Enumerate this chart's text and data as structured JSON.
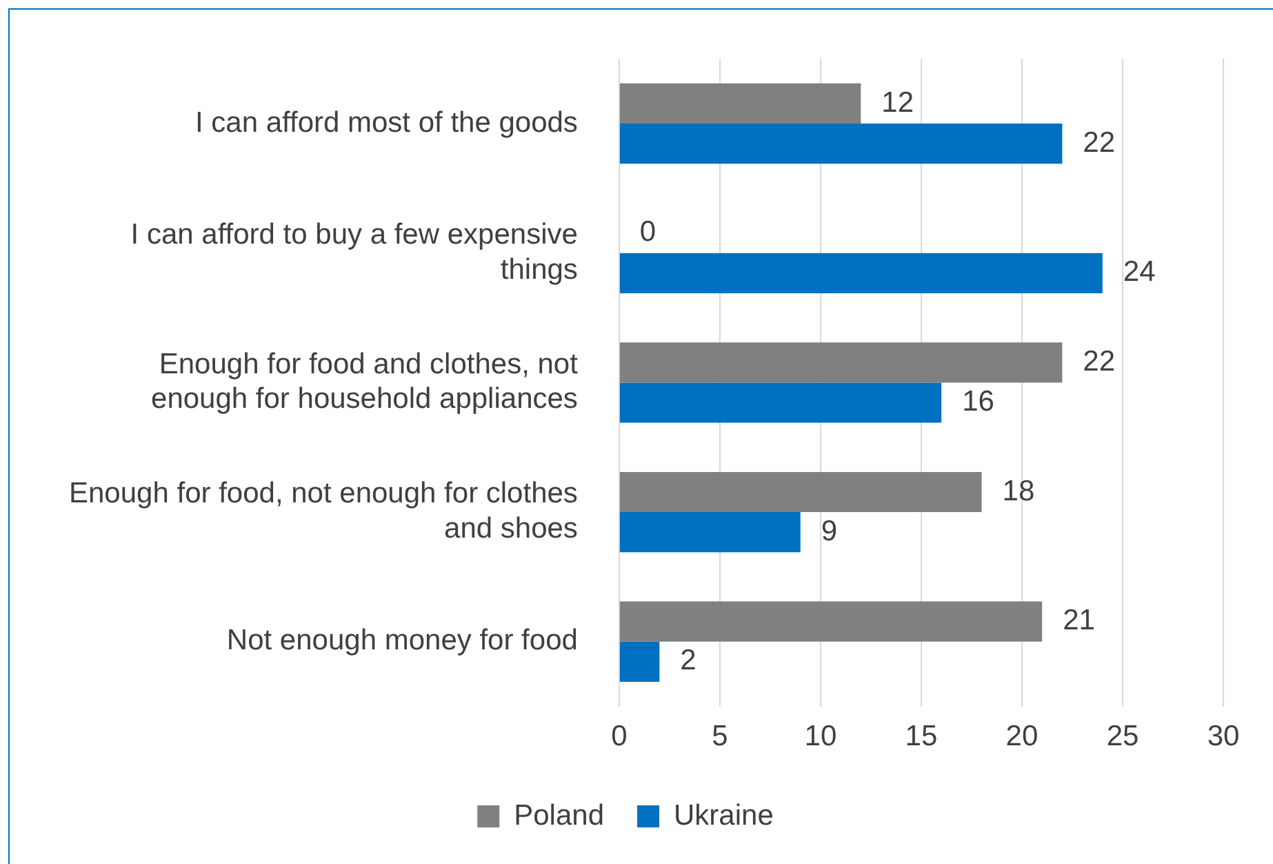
{
  "chart_data": {
    "type": "bar",
    "orientation": "horizontal",
    "categories": [
      "I can afford most of the goods",
      "I can afford to buy a few expensive things",
      "Enough for food and clothes, not enough for household appliances",
      "Enough for food, not enough for clothes and shoes",
      "Not enough money for food"
    ],
    "series": [
      {
        "name": "Poland",
        "color": "#808080",
        "values": [
          12,
          0,
          22,
          18,
          21
        ]
      },
      {
        "name": "Ukraine",
        "color": "#0070c0",
        "values": [
          22,
          24,
          16,
          9,
          2
        ]
      }
    ],
    "xlim": [
      0,
      30
    ],
    "xticks": [
      0,
      5,
      10,
      15,
      20,
      25,
      30
    ],
    "grid": "x",
    "legend": "bottom",
    "data_labels": true
  }
}
